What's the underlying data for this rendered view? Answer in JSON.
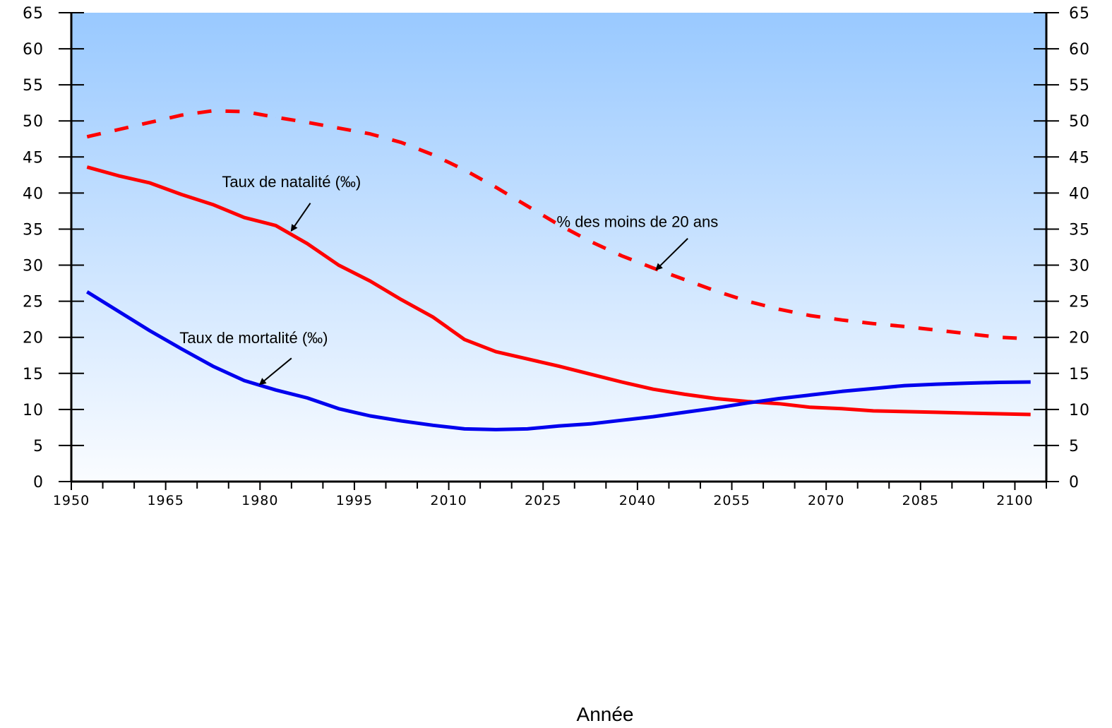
{
  "chart_data": {
    "type": "line",
    "xlabel": "Année",
    "x_ticks": [
      "1950",
      "1965",
      "1980",
      "1995",
      "2010",
      "2025",
      "2040",
      "2055",
      "2070",
      "2085",
      "2100"
    ],
    "y_ticks": [
      "0",
      "5",
      "10",
      "15",
      "20",
      "25",
      "30",
      "35",
      "40",
      "45",
      "50",
      "55",
      "60",
      "65"
    ],
    "y_right_ticks": [
      "0",
      "5",
      "10",
      "15",
      "20",
      "25",
      "30",
      "35",
      "40",
      "45",
      "50",
      "55",
      "60",
      "65"
    ],
    "xlim": [
      1950,
      2105
    ],
    "ylim": [
      0,
      65
    ],
    "grid": false,
    "series": [
      {
        "name": "% des moins de 20 ans",
        "style": "dashed",
        "color": "#ff0000",
        "x": [
          1952.5,
          1957.5,
          1962.5,
          1967.5,
          1972.5,
          1977.5,
          1982.5,
          1987.5,
          1992.5,
          1997.5,
          2002.5,
          2007.5,
          2012.5,
          2017.5,
          2022.5,
          2027.5,
          2032.5,
          2037.5,
          2042.5,
          2047.5,
          2052.5,
          2057.5,
          2062.5,
          2067.5,
          2072.5,
          2077.5,
          2082.5,
          2087.5,
          2092.5,
          2097.5,
          2102.5
        ],
        "values": [
          47.8,
          48.8,
          49.8,
          50.8,
          51.4,
          51.3,
          50.5,
          49.8,
          49.0,
          48.2,
          47.0,
          45.3,
          43.2,
          40.8,
          38.2,
          35.6,
          33.3,
          31.3,
          29.6,
          28.0,
          26.4,
          25.0,
          23.9,
          23.0,
          22.4,
          21.9,
          21.5,
          21.0,
          20.5,
          20.0,
          19.8
        ]
      },
      {
        "name": "Taux de natalité  (‰)",
        "style": "solid",
        "color": "#ff0000",
        "x": [
          1952.5,
          1957.5,
          1962.5,
          1967.5,
          1972.5,
          1977.5,
          1982.5,
          1987.5,
          1992.5,
          1997.5,
          2002.5,
          2007.5,
          2012.5,
          2017.5,
          2022.5,
          2027.5,
          2032.5,
          2037.5,
          2042.5,
          2047.5,
          2052.5,
          2057.5,
          2062.5,
          2067.5,
          2072.5,
          2077.5,
          2082.5,
          2087.5,
          2092.5,
          2097.5,
          2102.5
        ],
        "values": [
          43.6,
          42.4,
          41.4,
          39.8,
          38.4,
          36.6,
          35.5,
          33.0,
          30.0,
          27.8,
          25.2,
          22.8,
          19.7,
          18.0,
          17.0,
          16.0,
          14.9,
          13.8,
          12.8,
          12.1,
          11.5,
          11.1,
          10.8,
          10.3,
          10.1,
          9.8,
          9.7,
          9.6,
          9.5,
          9.4,
          9.3
        ]
      },
      {
        "name": "Taux de mortalité (‰)",
        "style": "solid",
        "color": "#0000ee",
        "x": [
          1952.5,
          1957.5,
          1962.5,
          1967.5,
          1972.5,
          1977.5,
          1982.5,
          1987.5,
          1992.5,
          1997.5,
          2002.5,
          2007.5,
          2012.5,
          2017.5,
          2022.5,
          2027.5,
          2032.5,
          2037.5,
          2042.5,
          2047.5,
          2052.5,
          2057.5,
          2062.5,
          2067.5,
          2072.5,
          2077.5,
          2082.5,
          2087.5,
          2092.5,
          2097.5,
          2102.5
        ],
        "values": [
          26.3,
          23.6,
          20.9,
          18.4,
          16.0,
          14.0,
          12.7,
          11.6,
          10.1,
          9.1,
          8.4,
          7.8,
          7.3,
          7.2,
          7.3,
          7.7,
          8.0,
          8.5,
          9.0,
          9.6,
          10.2,
          10.9,
          11.5,
          12.0,
          12.5,
          12.9,
          13.3,
          13.5,
          13.65,
          13.75,
          13.8
        ]
      }
    ],
    "annotations": [
      {
        "text": "Taux de natalité  (‰)",
        "series": "Taux de natalité  (‰)",
        "text_at": [
          1985,
          40.8
        ],
        "arrow_from": [
          1988,
          38.6
        ],
        "arrow_to": [
          1985,
          34.8
        ]
      },
      {
        "text": "% des moins de 20 ans",
        "series": "% des moins de 20 ans",
        "text_at": [
          2040,
          35.3
        ],
        "arrow_from": [
          2048,
          33.7
        ],
        "arrow_to": [
          2043,
          29.4
        ]
      },
      {
        "text": "Taux de mortalité (‰)",
        "series": "Taux de mortalité (‰)",
        "text_at": [
          1979,
          19.2
        ],
        "arrow_from": [
          1985,
          17.1
        ],
        "arrow_to": [
          1980,
          13.5
        ]
      }
    ],
    "colors": {
      "background_top": "#99c9ff",
      "background_bottom": "#fafcff",
      "axis": "#000000"
    }
  }
}
